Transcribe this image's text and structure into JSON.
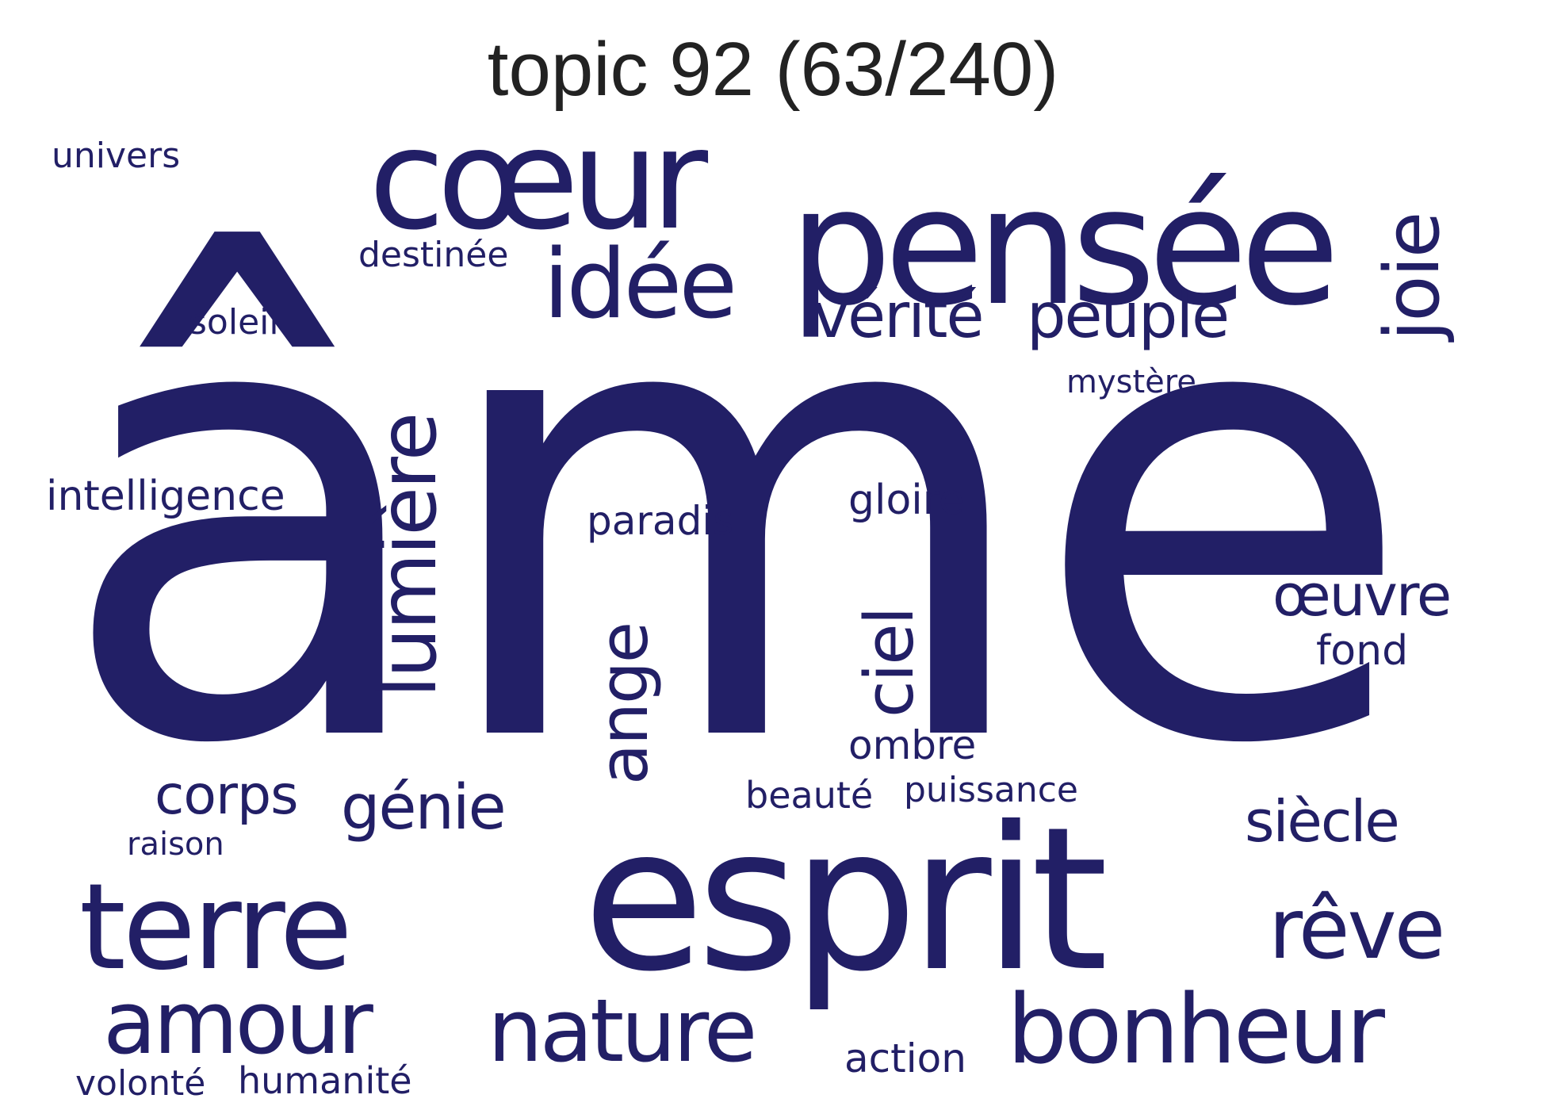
{
  "title": "topic 92 (63/240)",
  "colors": {
    "word": "#221f66",
    "title": "#222222",
    "background": "#ffffff"
  },
  "words": {
    "ame": "âme",
    "esprit": "esprit",
    "pensee": "pensée",
    "coeur": "cœur",
    "terre": "terre",
    "bonheur": "bonheur",
    "nature": "nature",
    "amour": "amour",
    "lumiere": "lumière",
    "idee": "idée",
    "joie": "joie",
    "reve": "rêve",
    "ciel": "ciel",
    "ange": "ange",
    "verite": "vérité",
    "peuple": "peuple",
    "genie": "génie",
    "siecle": "siècle",
    "oeuvre": "œuvre",
    "corps": "corps",
    "gloire": "gloire",
    "paradis": "paradis",
    "intelligence": "intelligence",
    "ombre": "ombre",
    "fond": "fond",
    "action": "action",
    "humanite": "humanité",
    "beaute": "beauté",
    "puissance": "puissance",
    "destinee": "destinée",
    "volonte": "volonté",
    "soleil": "soleil",
    "univers": "univers",
    "mystere": "mystère",
    "raison": "raison"
  }
}
